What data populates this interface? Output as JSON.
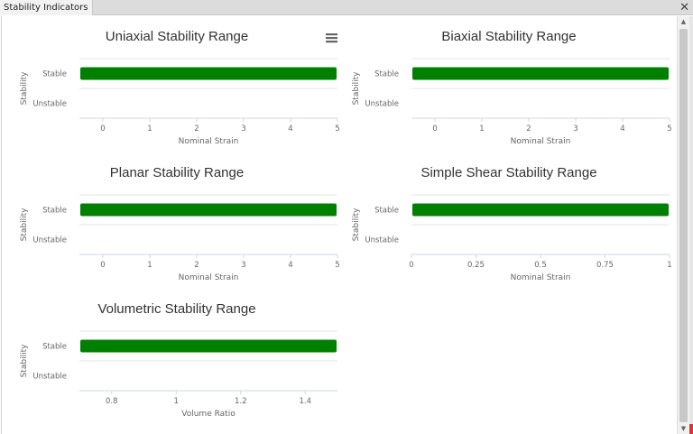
{
  "window": {
    "tab_title": "Stability Indicators",
    "close_icon": "close-icon",
    "close_glyph": "✕"
  },
  "colors": {
    "bar": "#008000",
    "grid": "#e6e6e6",
    "axis_line": "#ccd6eb",
    "tick_text": "#666666"
  },
  "chart_data": [
    {
      "type": "bar",
      "orientation": "horizontal",
      "title": "Uniaxial Stability Range",
      "xlabel": "Nominal Strain",
      "ylabel": "Stability",
      "categories": [
        "Stable",
        "Unstable"
      ],
      "x_ticks": [
        0,
        1,
        2,
        3,
        4,
        5
      ],
      "xlim": [
        -0.5,
        5
      ],
      "bars": [
        {
          "category": "Stable",
          "from": -0.5,
          "to": 5
        }
      ],
      "menu_icon": true
    },
    {
      "type": "bar",
      "orientation": "horizontal",
      "title": "Biaxial Stability Range",
      "xlabel": "Nominal Strain",
      "ylabel": "Stability",
      "categories": [
        "Stable",
        "Unstable"
      ],
      "x_ticks": [
        0,
        1,
        2,
        3,
        4,
        5
      ],
      "xlim": [
        -0.5,
        5
      ],
      "bars": [
        {
          "category": "Stable",
          "from": -0.5,
          "to": 5
        }
      ]
    },
    {
      "type": "bar",
      "orientation": "horizontal",
      "title": "Planar Stability Range",
      "xlabel": "Nominal Strain",
      "ylabel": "Stability",
      "categories": [
        "Stable",
        "Unstable"
      ],
      "x_ticks": [
        0,
        1,
        2,
        3,
        4,
        5
      ],
      "xlim": [
        -0.5,
        5
      ],
      "bars": [
        {
          "category": "Stable",
          "from": -0.5,
          "to": 5
        }
      ]
    },
    {
      "type": "bar",
      "orientation": "horizontal",
      "title": "Simple Shear Stability Range",
      "xlabel": "Nominal Strain",
      "ylabel": "Stability",
      "categories": [
        "Stable",
        "Unstable"
      ],
      "x_ticks": [
        0,
        0.25,
        0.5,
        0.75,
        1
      ],
      "x_tick_labels": [
        "0",
        "0.25",
        "0.5",
        "0.75",
        "1"
      ],
      "xlim": [
        0,
        1
      ],
      "bars": [
        {
          "category": "Stable",
          "from": 0,
          "to": 1
        }
      ]
    },
    {
      "type": "bar",
      "orientation": "horizontal",
      "title": "Volumetric Stability Range",
      "xlabel": "Volume Ratio",
      "ylabel": "Stability",
      "categories": [
        "Stable",
        "Unstable"
      ],
      "x_ticks": [
        0.8,
        1,
        1.2,
        1.4
      ],
      "x_tick_labels": [
        "0.8",
        "1",
        "1.2",
        "1.4"
      ],
      "xlim": [
        0.7,
        1.5
      ],
      "bars": [
        {
          "category": "Stable",
          "from": 0.7,
          "to": 1.5
        }
      ]
    }
  ]
}
